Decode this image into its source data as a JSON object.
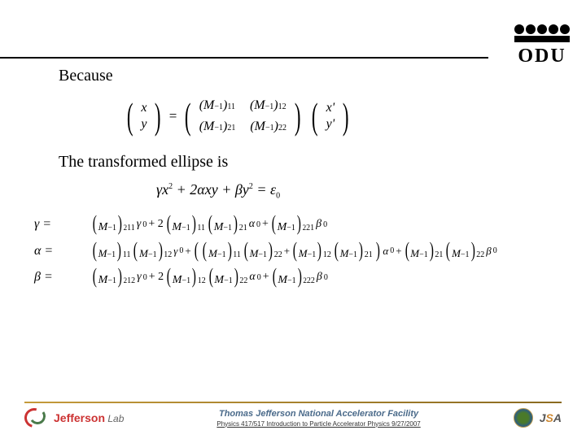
{
  "header": {
    "logo_text": "ODU"
  },
  "content": {
    "line1": "Because",
    "line2": "The transformed ellipse is",
    "eq_vector_xy": {
      "x": "x",
      "y": "y",
      "xp": "x'",
      "yp": "y'"
    },
    "eq_ellipse": "γx² + 2αxy + βy² = ε₀",
    "labels": {
      "gamma": "γ =",
      "alpha": "α =",
      "beta": "β ="
    },
    "m_inv": "M⁻¹",
    "subscripts": {
      "s11": "11",
      "s12": "12",
      "s21": "21",
      "s22": "22"
    },
    "greek_sub": {
      "g0": "γ₀",
      "a0": "α₀",
      "b0": "β₀"
    }
  },
  "footer": {
    "jlab_name1": "Jefferson",
    "jlab_name2": " Lab",
    "facility": "Thomas Jefferson National Accelerator Facility",
    "course": "Physics 417/517 Introduction to Particle Accelerator Physics  9/27/2007",
    "jsa": "JSA"
  },
  "styling": {
    "page_bg": "#ffffff",
    "body_font": "Georgia, Times New Roman, serif",
    "text_fontsize": 20,
    "eq_fontsize": 17,
    "logo_fontsize": 24,
    "hr_gold_gradient": [
      "#c49a3a",
      "#8a6a20"
    ],
    "jlab_red": "#cc3333",
    "jlab_green": "#4a7a4a",
    "facility_color": "#4a6a8a",
    "doe_colors": [
      "#4a7a2a",
      "#2a5a8a",
      "#b89a4a"
    ]
  }
}
